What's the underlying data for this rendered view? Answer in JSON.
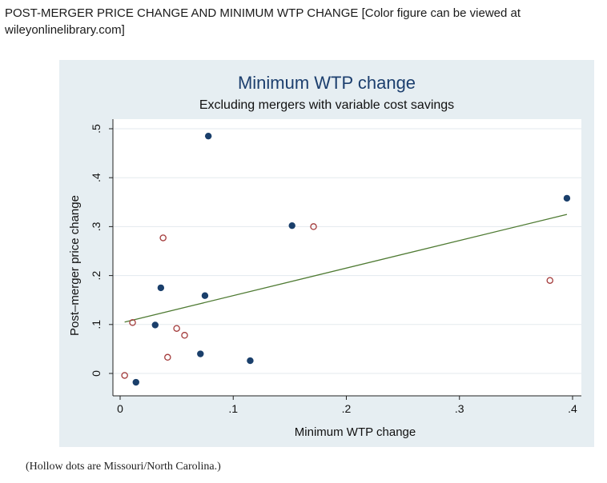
{
  "figure": {
    "caption": "POST-MERGER PRICE CHANGE AND MINIMUM WTP CHANGE  [Color figure can be viewed at wileyonlinelibrary.com]",
    "note": "(Hollow dots are Missouri/North Carolina.)"
  },
  "colors": {
    "panel_bg": "#e6eef2",
    "plot_bg": "#ffffff",
    "filled_marker": "#1a3f6b",
    "hollow_marker": "#a33a3a",
    "fit_line": "#4e7a32",
    "title": "#1c3f6e"
  },
  "chart_data": {
    "type": "scatter",
    "title": "Minimum WTP change",
    "subtitle": "Excluding mergers with variable cost savings",
    "xlabel": "Minimum WTP change",
    "ylabel": "Post–merger price change",
    "xlim": [
      0,
      0.4
    ],
    "ylim": [
      -0.02,
      0.5
    ],
    "xticks": [
      0,
      0.1,
      0.2,
      0.3,
      0.4
    ],
    "xtick_labels": [
      "0",
      ".1",
      ".2",
      ".3",
      ".4"
    ],
    "yticks": [
      0,
      0.1,
      0.2,
      0.3,
      0.4,
      0.5
    ],
    "ytick_labels": [
      "0",
      ".1",
      ".2",
      ".3",
      ".4",
      ".5"
    ],
    "grid": true,
    "series": [
      {
        "style": "filled",
        "points": [
          {
            "x": 0.078,
            "y": 0.485
          },
          {
            "x": 0.395,
            "y": 0.358
          },
          {
            "x": 0.152,
            "y": 0.302
          },
          {
            "x": 0.036,
            "y": 0.175
          },
          {
            "x": 0.075,
            "y": 0.159
          },
          {
            "x": 0.031,
            "y": 0.099
          },
          {
            "x": 0.071,
            "y": 0.04
          },
          {
            "x": 0.115,
            "y": 0.026
          },
          {
            "x": 0.014,
            "y": -0.018
          }
        ]
      },
      {
        "style": "hollow",
        "points": [
          {
            "x": 0.038,
            "y": 0.277
          },
          {
            "x": 0.171,
            "y": 0.3
          },
          {
            "x": 0.38,
            "y": 0.19
          },
          {
            "x": 0.011,
            "y": 0.104
          },
          {
            "x": 0.05,
            "y": 0.092
          },
          {
            "x": 0.057,
            "y": 0.078
          },
          {
            "x": 0.042,
            "y": 0.033
          },
          {
            "x": 0.004,
            "y": -0.004
          }
        ]
      }
    ],
    "fit_line": {
      "x": [
        0.004,
        0.395
      ],
      "y": [
        0.105,
        0.325
      ]
    }
  }
}
